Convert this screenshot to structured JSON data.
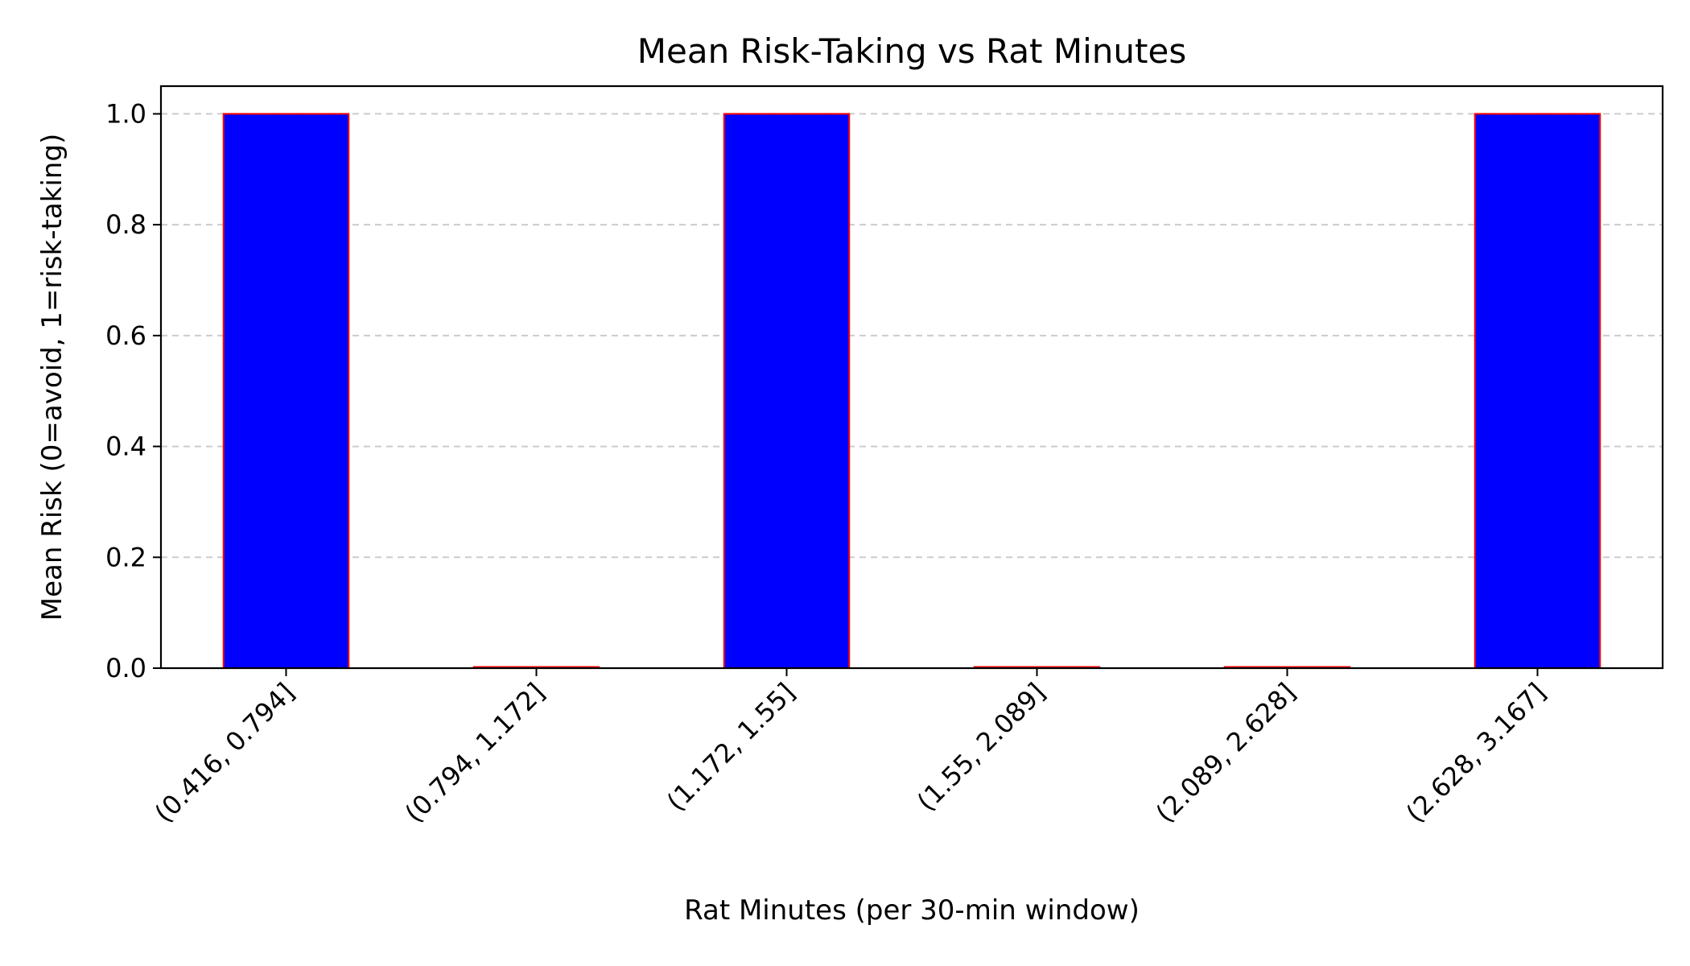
{
  "chart_data": {
    "type": "bar",
    "title": "Mean Risk-Taking vs Rat Minutes",
    "xlabel": "Rat Minutes (per 30-min window)",
    "ylabel": "Mean Risk (0=avoid, 1=risk-taking)",
    "categories": [
      "(0.416, 0.794]",
      "(0.794, 1.172]",
      "(1.172, 1.55]",
      "(1.55, 2.089]",
      "(2.089, 2.628]",
      "(2.628, 3.167]"
    ],
    "values": [
      1.0,
      0.0,
      1.0,
      0.0,
      0.0,
      1.0
    ],
    "ylim": [
      0,
      1.05
    ],
    "yticks": [
      "0.0",
      "0.2",
      "0.4",
      "0.6",
      "0.8",
      "1.0"
    ],
    "grid": "y-dashed",
    "legend": "none",
    "bar_color": "#0000ff",
    "bar_edge_color": "#ff0000",
    "grid_color": "#cccccc"
  }
}
